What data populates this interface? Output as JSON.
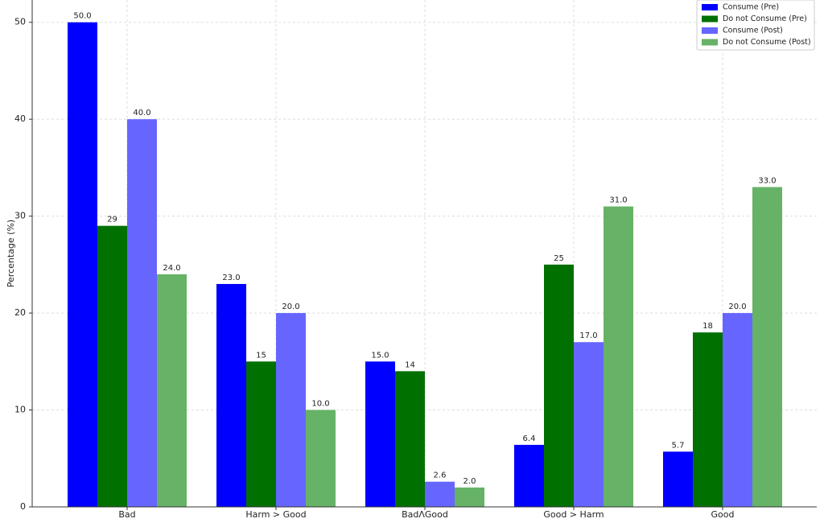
{
  "chart_data": {
    "type": "bar",
    "y_label": "Percentage (%)",
    "categories": [
      "Bad",
      "Harm > Good",
      "BadΛGood",
      "Good > Harm",
      "Good"
    ],
    "series": [
      {
        "name": "Consume (Pre)",
        "color": "#0000ff",
        "values": [
          50,
          23,
          15,
          6.4,
          5.7
        ],
        "value_labels": [
          "50.0",
          "23.0",
          "15.0",
          "6.4",
          "5.7"
        ]
      },
      {
        "name": "Do not Consume (Pre)",
        "color": "#007000",
        "values": [
          29,
          15,
          14,
          25,
          18
        ]
      },
      {
        "name": "Consume (Post)",
        "color": "#6666ff",
        "values": [
          40,
          20,
          2.6,
          17,
          20
        ],
        "value_labels": [
          "40.0",
          "20.0",
          "2.6",
          "17.0",
          "20.0"
        ]
      },
      {
        "name": "Do not Consume (Post)",
        "color": "#66b266",
        "values": [
          24,
          10,
          2,
          31,
          33
        ],
        "value_labels": [
          "24.0",
          "10.0",
          "2.0",
          "31.0",
          "33.0"
        ]
      }
    ],
    "ylim": [
      0,
      52.3
    ],
    "yticks": [
      0,
      10,
      20,
      30,
      40,
      50
    ],
    "grid": true,
    "legend": "upper right"
  }
}
